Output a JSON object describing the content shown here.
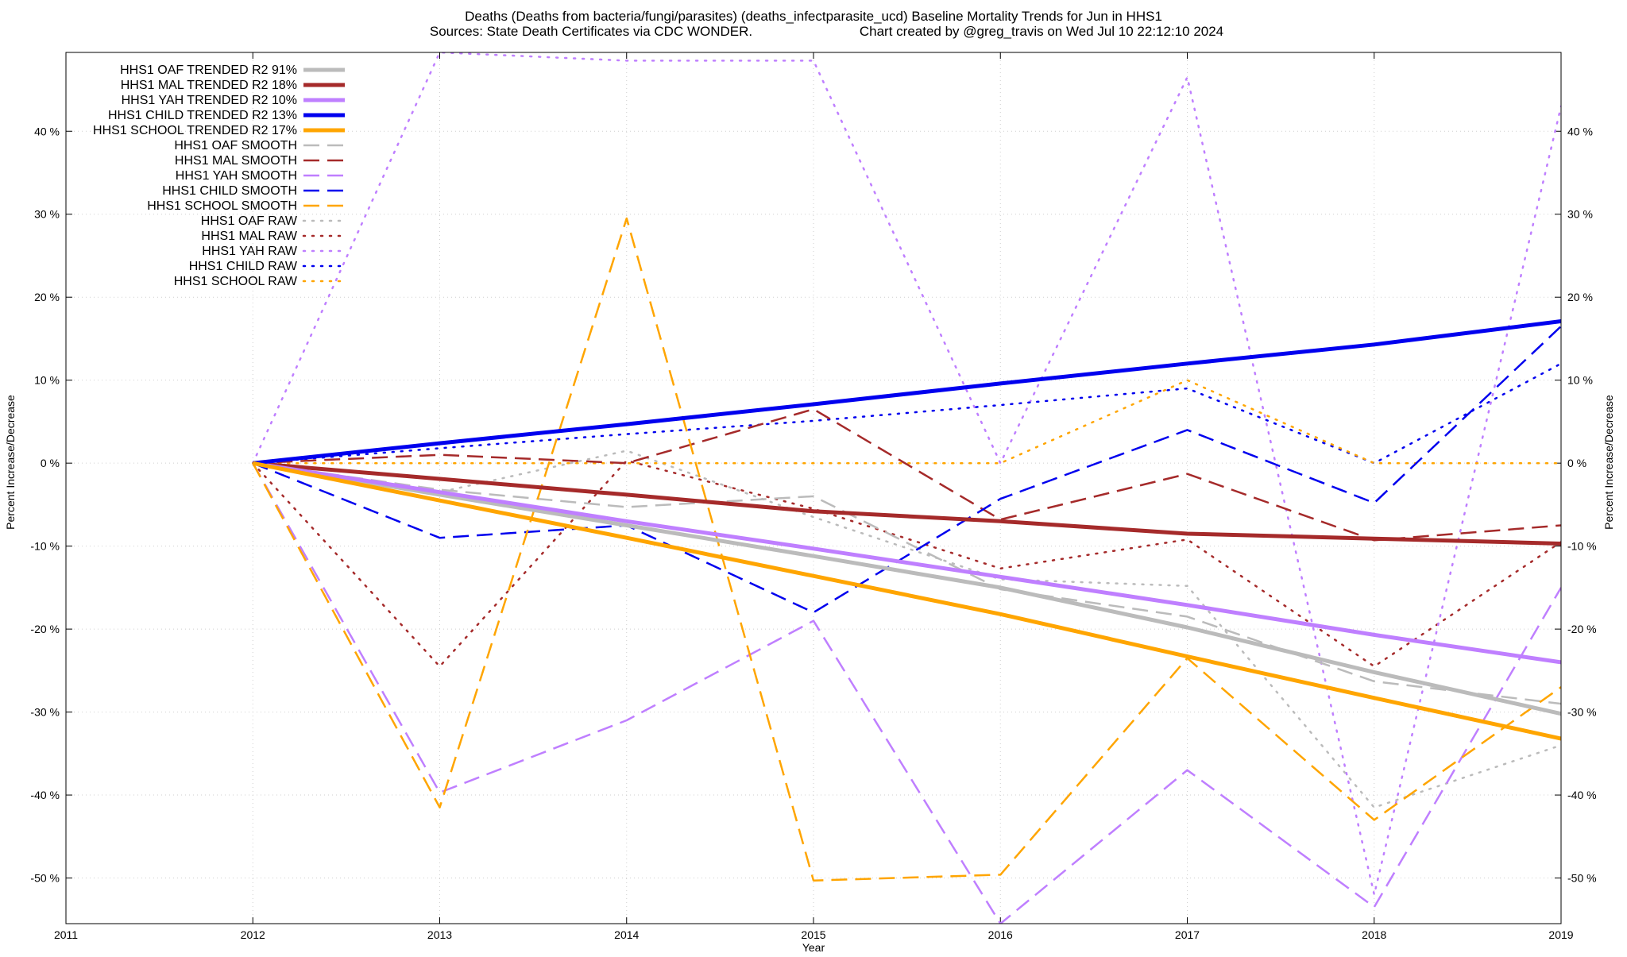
{
  "chart_data": {
    "type": "line",
    "title_line1": "Deaths (Deaths from bacteria/fungi/parasites) (deaths_infectparasite_ucd)  Baseline Mortality Trends for Jun in HHS1",
    "title_line2_left": "Sources: State Death Certificates via CDC WONDER.",
    "title_line2_right": "Chart created by @greg_travis on Wed Jul 10 22:12:10 2024",
    "xlabel": "Year",
    "ylabel_left": "Percent Increase/Decrease",
    "ylabel_right": "Percent Increase/Decrease",
    "xlim": [
      2011,
      2019
    ],
    "ylim": [
      -55.5,
      49.5
    ],
    "x_ticks": [
      2011,
      2012,
      2013,
      2014,
      2015,
      2016,
      2017,
      2018,
      2019
    ],
    "x_tick_labels": [
      "2011",
      "2012",
      "2013",
      "2014",
      "2015",
      "2016",
      "2017",
      "2018",
      "2019"
    ],
    "y_ticks": [
      -50,
      -40,
      -30,
      -20,
      -10,
      0,
      10,
      20,
      30,
      40
    ],
    "y_tick_labels": [
      "-50 %",
      "-40 %",
      "-30 %",
      "-20 %",
      "-10 %",
      "0 %",
      "10 %",
      "20 %",
      "30 %",
      "40 %"
    ],
    "grid": true,
    "legend_position": "top-left",
    "series": [
      {
        "name": "HHS1 OAF TRENDED R2  91%",
        "style": "solid",
        "color": "#bbbbbb",
        "x": [
          2012,
          2013,
          2014,
          2015,
          2016,
          2017,
          2018,
          2019
        ],
        "y": [
          0,
          -3.8,
          -7.5,
          -11.2,
          -15,
          -19.8,
          -25.2,
          -30.2
        ]
      },
      {
        "name": "HHS1 MAL TRENDED R2  18%",
        "style": "solid",
        "color": "#a52a2a",
        "x": [
          2012,
          2013,
          2014,
          2015,
          2016,
          2017,
          2018,
          2019
        ],
        "y": [
          0,
          -1.9,
          -3.8,
          -5.8,
          -7.0,
          -8.5,
          -9.1,
          -9.7
        ]
      },
      {
        "name": "HHS1 YAH TRENDED R2  10%",
        "style": "solid",
        "color": "#bf7fff",
        "x": [
          2012,
          2013,
          2014,
          2015,
          2016,
          2017,
          2018,
          2019
        ],
        "y": [
          0,
          -3.5,
          -7.0,
          -10.3,
          -13.7,
          -17.1,
          -20.7,
          -24.0
        ]
      },
      {
        "name": "HHS1 CHILD TRENDED R2  13%",
        "style": "solid",
        "color": "#0000ee",
        "x": [
          2012,
          2013,
          2014,
          2015,
          2016,
          2017,
          2018,
          2019
        ],
        "y": [
          0,
          2.4,
          4.7,
          7.1,
          9.6,
          12.0,
          14.3,
          17.1
        ]
      },
      {
        "name": "HHS1 SCHOOL TRENDED R2  17%",
        "style": "solid",
        "color": "#ffa500",
        "x": [
          2012,
          2013,
          2014,
          2015,
          2016,
          2017,
          2018,
          2019
        ],
        "y": [
          0,
          -4.5,
          -9.0,
          -13.6,
          -18.2,
          -23.3,
          -28.3,
          -33.2
        ]
      },
      {
        "name": "HHS1 OAF SMOOTH",
        "style": "dashed",
        "color": "#bbbbbb",
        "x": [
          2012,
          2013,
          2014,
          2015,
          2016,
          2017,
          2018,
          2019
        ],
        "y": [
          0,
          -3.2,
          -5.3,
          -4.0,
          -15.2,
          -18.5,
          -26.3,
          -29.0
        ]
      },
      {
        "name": "HHS1 MAL SMOOTH",
        "style": "dashed",
        "color": "#a52a2a",
        "x": [
          2012,
          2013,
          2014,
          2015,
          2016,
          2017,
          2018,
          2019
        ],
        "y": [
          0,
          1.0,
          0.0,
          6.5,
          -6.8,
          -1.3,
          -9.3,
          -7.5
        ]
      },
      {
        "name": "HHS1 YAH SMOOTH",
        "style": "dashed",
        "color": "#bf7fff",
        "x": [
          2012,
          2013,
          2014,
          2015,
          2016,
          2017,
          2018,
          2019
        ],
        "y": [
          0,
          -39.7,
          -31.0,
          -19.0,
          -55.5,
          -37.0,
          -53.5,
          -15.0
        ]
      },
      {
        "name": "HHS1 CHILD SMOOTH",
        "style": "dashed",
        "color": "#0000ee",
        "x": [
          2012,
          2013,
          2014,
          2015,
          2016,
          2017,
          2018,
          2019
        ],
        "y": [
          0,
          -9.0,
          -7.5,
          -18.0,
          -4.3,
          4.0,
          -4.8,
          16.5
        ]
      },
      {
        "name": "HHS1 SCHOOL SMOOTH",
        "style": "dashed",
        "color": "#ffa500",
        "x": [
          2012,
          2013,
          2014,
          2015,
          2016,
          2017,
          2018,
          2019
        ],
        "y": [
          0,
          -41.5,
          29.5,
          -50.3,
          -49.6,
          -23.5,
          -43.0,
          -27.0
        ]
      },
      {
        "name": "HHS1 OAF RAW",
        "style": "dotted",
        "color": "#bbbbbb",
        "x": [
          2012,
          2013,
          2014,
          2015,
          2016,
          2017,
          2018,
          2019
        ],
        "y": [
          0,
          -3.5,
          1.5,
          -6.5,
          -14.0,
          -14.8,
          -41.5,
          -34.0
        ]
      },
      {
        "name": "HHS1 MAL RAW",
        "style": "dotted",
        "color": "#a52a2a",
        "x": [
          2012,
          2013,
          2014,
          2015,
          2016,
          2017,
          2018,
          2019
        ],
        "y": [
          0,
          -24.5,
          0.3,
          -5.5,
          -12.7,
          -9.2,
          -24.5,
          -9.5
        ]
      },
      {
        "name": "HHS1 YAH RAW",
        "style": "dotted",
        "color": "#bf7fff",
        "x": [
          2012,
          2013,
          2014,
          2015,
          2016,
          2017,
          2018,
          2019
        ],
        "y": [
          0,
          49.5,
          48.5,
          48.5,
          0,
          46.5,
          -52.0,
          43.0
        ]
      },
      {
        "name": "HHS1 CHILD RAW",
        "style": "dotted",
        "color": "#0000ee",
        "x": [
          2012,
          2013,
          2014,
          2015,
          2016,
          2017,
          2018,
          2019
        ],
        "y": [
          0,
          1.8,
          3.5,
          5.1,
          7.0,
          9.0,
          0.0,
          12.0
        ]
      },
      {
        "name": "HHS1 SCHOOL RAW",
        "style": "dotted",
        "color": "#ffa500",
        "x": [
          2012,
          2013,
          2014,
          2015,
          2016,
          2017,
          2018,
          2019
        ],
        "y": [
          0,
          0,
          0,
          0,
          0,
          10.0,
          0,
          0
        ]
      }
    ]
  }
}
